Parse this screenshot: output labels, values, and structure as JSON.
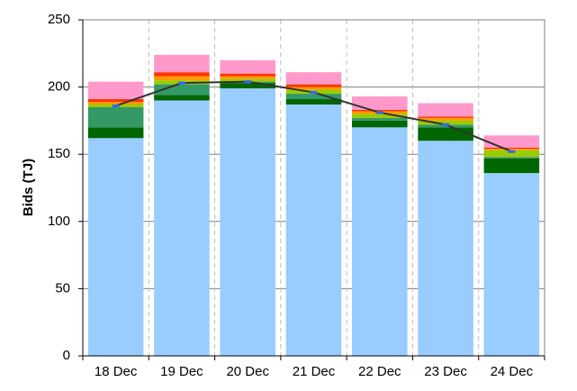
{
  "chart_data": {
    "type": "bar",
    "stacked": true,
    "y_label": "Bids (TJ)",
    "categories": [
      "18 Dec",
      "19 Dec",
      "20 Dec",
      "21 Dec",
      "22 Dec",
      "23 Dec",
      "24 Dec"
    ],
    "series": [
      {
        "type": "bar",
        "color": "#99ccff",
        "values": [
          162,
          190,
          199,
          187,
          170,
          160,
          136
        ]
      },
      {
        "type": "bar",
        "color": "#006600",
        "values": [
          8,
          4,
          4,
          4,
          5,
          10,
          11
        ]
      },
      {
        "type": "bar",
        "color": "#339966",
        "values": [
          15,
          8,
          1,
          4,
          2,
          2,
          1
        ]
      },
      {
        "type": "bar",
        "color": "#99cc00",
        "values": [
          2,
          3,
          2,
          3,
          3,
          3,
          5
        ]
      },
      {
        "type": "bar",
        "color": "#ff9900",
        "values": [
          2,
          3,
          2,
          2,
          2,
          2,
          1
        ]
      },
      {
        "type": "bar",
        "color": "#ff3300",
        "values": [
          2,
          3,
          2,
          2,
          1,
          1,
          1
        ]
      },
      {
        "type": "bar",
        "color": "#ff99cc",
        "values": [
          13,
          13,
          10,
          9,
          10,
          10,
          9
        ]
      },
      {
        "type": "line",
        "color": "#333333",
        "marker_color": "#3366ff",
        "values": [
          186,
          203,
          204,
          196,
          181,
          172,
          152
        ]
      }
    ],
    "ylim": [
      0,
      250
    ],
    "yticks": [
      0,
      50,
      100,
      150,
      200,
      250
    ],
    "grid": true
  }
}
